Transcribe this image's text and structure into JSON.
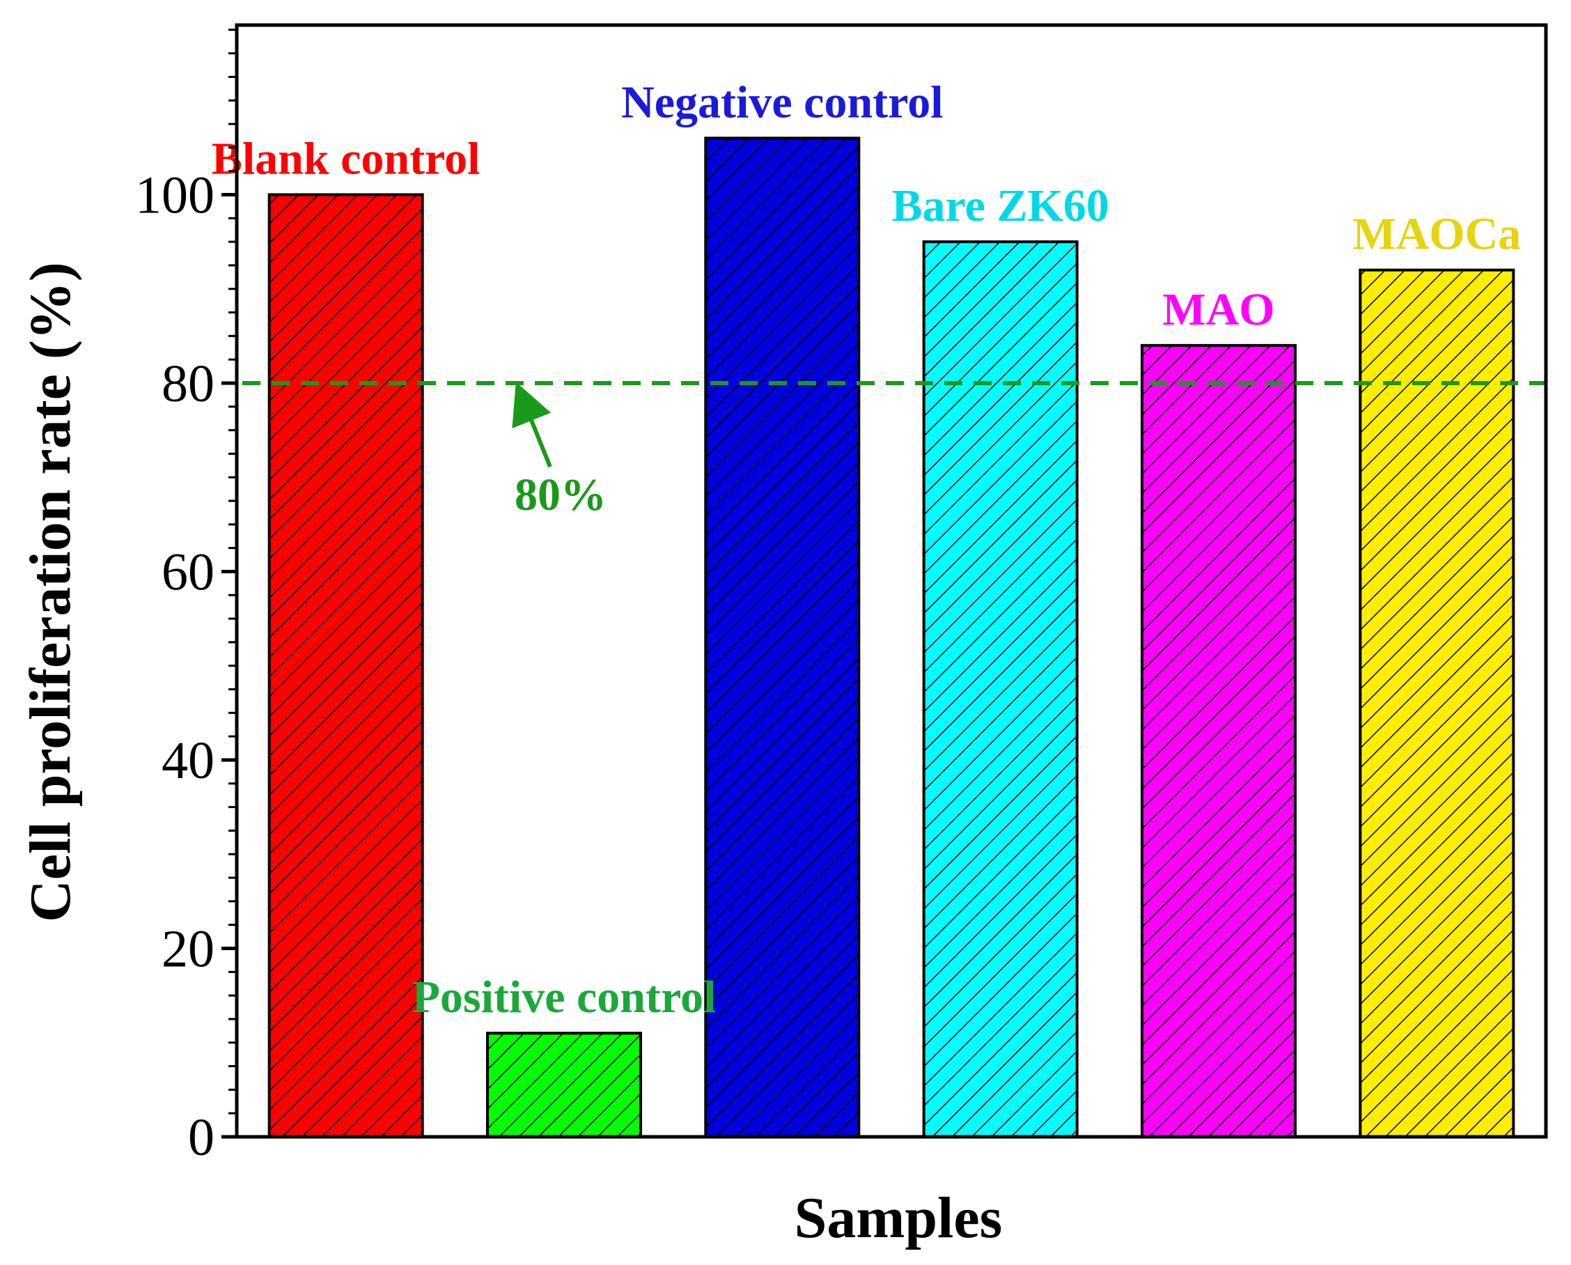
{
  "chart_data": {
    "type": "bar",
    "title": "",
    "xlabel": "Samples",
    "ylabel": "Cell proliferation rate (%)",
    "ylim": [
      0,
      118
    ],
    "yticks": [
      0,
      20,
      40,
      60,
      80,
      100
    ],
    "grid": false,
    "categories": [
      "Blank control",
      "Positive control",
      "Negative control",
      "Bare ZK60",
      "MAO",
      "MAOCa"
    ],
    "values": [
      100,
      11,
      106,
      95,
      84,
      92
    ],
    "colors": [
      "#ff0000",
      "#00ff00",
      "#0000dd",
      "#00ffff",
      "#ff00ff",
      "#ffee00"
    ],
    "label_colors": [
      "#ff0000",
      "#1aa83a",
      "#1a1adc",
      "#00d8e8",
      "#ff00ff",
      "#e6d40c"
    ],
    "reference_line": {
      "value": 80,
      "label": "80%",
      "color": "#1a9a1a",
      "style": "dashed"
    }
  }
}
